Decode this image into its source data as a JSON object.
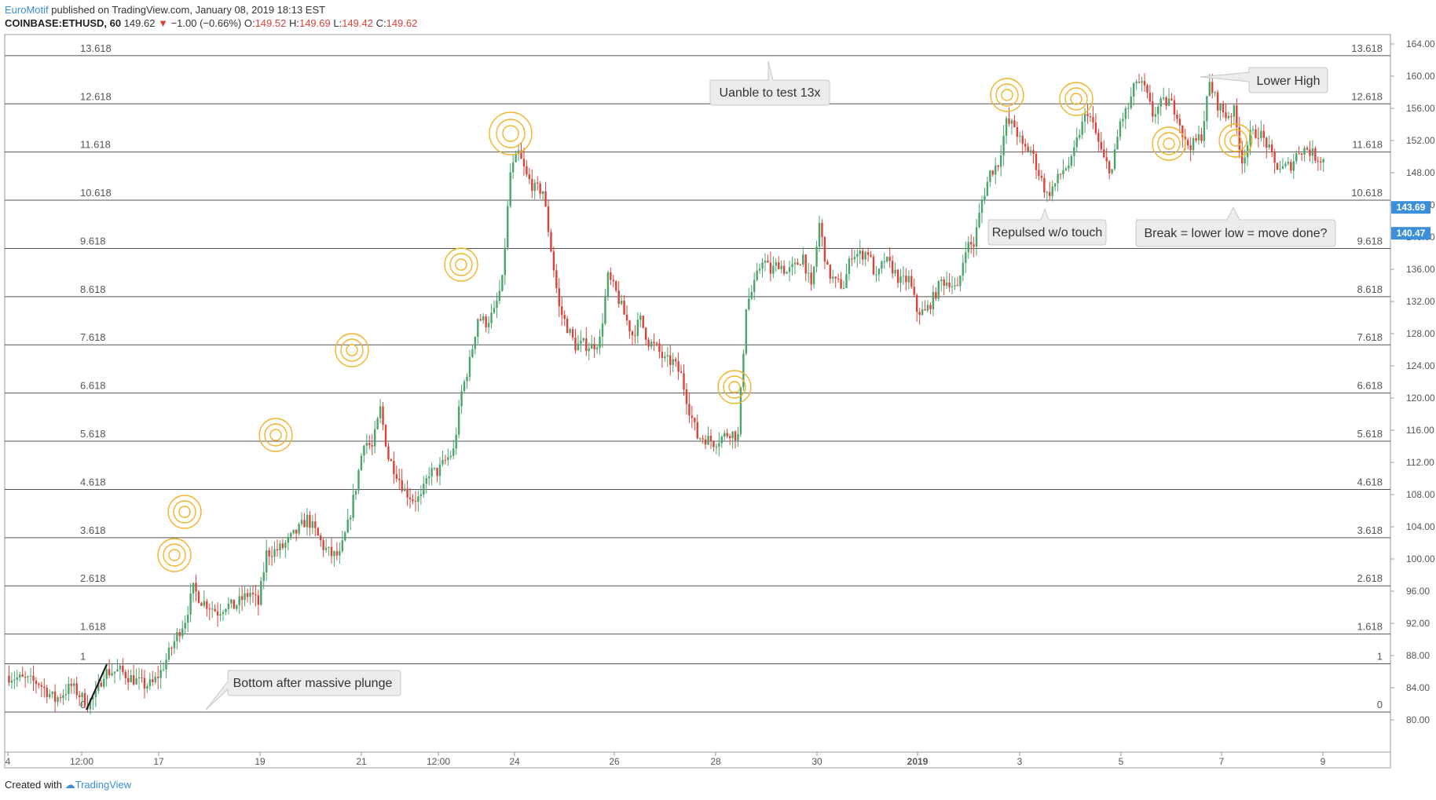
{
  "header": {
    "author": "EuroMotif",
    "published": "published on TradingView.com, January 08, 2019 18:13 EST",
    "symbol": "COINBASE:ETHUSD, 60",
    "last": "149.62",
    "change_arrow": "▼",
    "change": "−1.00 (−0.66%)",
    "o_label": "O:",
    "o": "149.52",
    "h_label": "H:",
    "h": "149.69",
    "l_label": "L:",
    "l": "149.42",
    "c_label": "C:",
    "c": "149.62"
  },
  "footer": {
    "created": "Created with",
    "brand": "TradingView"
  },
  "colors": {
    "up": "#4aa46b",
    "down": "#d9443a",
    "ring": "#f0b429",
    "badge": "#3a8fd8",
    "line": "#555555"
  },
  "chart_data": {
    "type": "candlestick",
    "ylim": [
      76,
      165
    ],
    "y_ticks": [
      "164.00",
      "160.00",
      "156.00",
      "152.00",
      "148.00",
      "144.00",
      "140.00",
      "136.00",
      "132.00",
      "128.00",
      "124.00",
      "120.00",
      "116.00",
      "112.00",
      "108.00",
      "104.00",
      "100.00",
      "96.00",
      "92.00",
      "88.00",
      "84.00",
      "80.00"
    ],
    "x_ticks": [
      "4",
      "12:00",
      "17",
      "19",
      "21",
      "12:00",
      "24",
      "26",
      "28",
      "30",
      "2019",
      "3",
      "5",
      "7",
      "9"
    ],
    "price_badges": [
      "143.69",
      "140.47"
    ],
    "fib_levels": [
      {
        "label": "0",
        "price": 80.98
      },
      {
        "label": "1",
        "price": 86.97
      },
      {
        "label": "1.618",
        "price": 90.67
      },
      {
        "label": "2.618",
        "price": 96.66
      },
      {
        "label": "3.618",
        "price": 102.65
      },
      {
        "label": "4.618",
        "price": 108.64
      },
      {
        "label": "5.618",
        "price": 114.63
      },
      {
        "label": "6.618",
        "price": 120.62
      },
      {
        "label": "7.618",
        "price": 126.61
      },
      {
        "label": "8.618",
        "price": 132.6
      },
      {
        "label": "9.618",
        "price": 138.59
      },
      {
        "label": "10.618",
        "price": 144.58
      },
      {
        "label": "11.618",
        "price": 150.57
      },
      {
        "label": "12.618",
        "price": 156.56
      },
      {
        "label": "13.618",
        "price": 162.55
      }
    ],
    "path": [
      [
        0,
        85.5
      ],
      [
        4,
        84.6
      ],
      [
        6,
        82.5
      ],
      [
        8,
        84.2
      ],
      [
        10,
        82.0
      ],
      [
        11,
        83.0
      ],
      [
        12,
        85.9
      ],
      [
        14,
        86.1
      ],
      [
        15,
        85.4
      ],
      [
        17,
        84.3
      ],
      [
        18,
        84.5
      ],
      [
        19,
        86.0
      ],
      [
        21,
        90.5
      ],
      [
        22,
        92.5
      ],
      [
        23,
        96.3
      ],
      [
        24,
        94.8
      ],
      [
        25,
        94.2
      ],
      [
        26,
        93.4
      ],
      [
        27,
        94.3
      ],
      [
        28,
        94.1
      ],
      [
        29,
        95.0
      ],
      [
        30,
        95.8
      ],
      [
        31,
        94.4
      ],
      [
        32,
        100.7
      ],
      [
        33,
        101.0
      ],
      [
        34,
        101.5
      ],
      [
        35,
        102.6
      ],
      [
        36,
        103.7
      ],
      [
        37,
        105.0
      ],
      [
        38,
        103.4
      ],
      [
        39,
        101.5
      ],
      [
        40,
        100.5
      ],
      [
        41,
        100.4
      ],
      [
        42,
        104.2
      ],
      [
        43,
        109.0
      ],
      [
        44,
        114.8
      ],
      [
        45,
        113.8
      ],
      [
        46,
        118.6
      ],
      [
        47,
        112.6
      ],
      [
        48,
        110.7
      ],
      [
        49,
        108.5
      ],
      [
        50,
        107.5
      ],
      [
        51,
        107.5
      ],
      [
        52,
        110.8
      ],
      [
        53,
        110.8
      ],
      [
        54,
        112.2
      ],
      [
        55,
        113.4
      ],
      [
        56,
        120.7
      ],
      [
        57,
        124.5
      ],
      [
        58,
        130.0
      ],
      [
        59,
        129.4
      ],
      [
        60,
        130.6
      ],
      [
        61,
        134.5
      ],
      [
        62,
        148.0
      ],
      [
        63,
        150.4
      ],
      [
        64,
        147.5
      ],
      [
        65,
        146.0
      ],
      [
        66,
        145.8
      ],
      [
        67,
        138.5
      ],
      [
        68,
        131.2
      ],
      [
        69,
        128.8
      ],
      [
        70,
        126.5
      ],
      [
        71,
        126.7
      ],
      [
        72,
        126.4
      ],
      [
        73,
        127.2
      ],
      [
        74,
        135.0
      ],
      [
        75,
        133.1
      ],
      [
        76,
        130.4
      ],
      [
        77,
        127.9
      ],
      [
        78,
        129.7
      ],
      [
        79,
        127.0
      ],
      [
        80,
        126.2
      ],
      [
        81,
        124.6
      ],
      [
        82,
        124.5
      ],
      [
        83,
        122.8
      ],
      [
        84,
        118.6
      ],
      [
        85,
        115.2
      ],
      [
        86,
        115.0
      ],
      [
        87,
        114.5
      ],
      [
        88,
        115.1
      ],
      [
        89,
        115.8
      ],
      [
        90,
        115.2
      ],
      [
        91,
        131.5
      ],
      [
        92,
        134.0
      ],
      [
        93,
        137.4
      ],
      [
        94,
        135.7
      ],
      [
        95,
        136.8
      ],
      [
        96,
        135.6
      ],
      [
        97,
        136.3
      ],
      [
        98,
        137.7
      ],
      [
        99,
        133.4
      ],
      [
        100,
        141.6
      ],
      [
        101,
        135.8
      ],
      [
        102,
        134.3
      ],
      [
        103,
        134.0
      ],
      [
        104,
        138.0
      ],
      [
        105,
        137.8
      ],
      [
        106,
        138.2
      ],
      [
        107,
        134.7
      ],
      [
        108,
        137.2
      ],
      [
        109,
        136.1
      ],
      [
        110,
        134.4
      ],
      [
        111,
        134.8
      ],
      [
        112,
        130.9
      ],
      [
        113,
        130.6
      ],
      [
        114,
        132.4
      ],
      [
        115,
        134.5
      ],
      [
        116,
        134.5
      ],
      [
        117,
        133.3
      ],
      [
        118,
        138.9
      ],
      [
        119,
        139.1
      ],
      [
        120,
        144.5
      ],
      [
        121,
        148.0
      ],
      [
        122,
        149.2
      ],
      [
        123,
        154.2
      ],
      [
        124,
        153.8
      ],
      [
        125,
        151.1
      ],
      [
        126,
        150.8
      ],
      [
        127,
        148.0
      ],
      [
        128,
        145.2
      ],
      [
        129,
        146.6
      ],
      [
        130,
        148.4
      ],
      [
        131,
        149.3
      ],
      [
        132,
        153.1
      ],
      [
        133,
        155.7
      ],
      [
        134,
        152.8
      ],
      [
        135,
        149.5
      ],
      [
        136,
        148.3
      ],
      [
        137,
        154.3
      ],
      [
        138,
        156.1
      ],
      [
        139,
        159.5
      ],
      [
        140,
        158.4
      ],
      [
        141,
        155.2
      ],
      [
        142,
        156.5
      ],
      [
        143,
        156.9
      ],
      [
        144,
        155.5
      ],
      [
        145,
        151.6
      ],
      [
        146,
        151.5
      ],
      [
        147,
        152.7
      ],
      [
        148,
        159.0
      ],
      [
        149,
        156.5
      ],
      [
        150,
        155.1
      ],
      [
        151,
        155.6
      ],
      [
        152,
        149.5
      ],
      [
        153,
        152.6
      ],
      [
        154,
        153.1
      ],
      [
        155,
        151.6
      ],
      [
        156,
        149.0
      ],
      [
        157,
        148.5
      ],
      [
        158,
        149.0
      ],
      [
        159,
        150.8
      ],
      [
        160,
        151.0
      ],
      [
        161,
        150.0
      ],
      [
        162,
        149.6
      ]
    ]
  },
  "annotations": {
    "c1": "Uanble to test 13x",
    "c2": "Lower High",
    "c3": "Repulsed w/o touch",
    "c4": "Break = lower low = move done?",
    "c5": "Bottom after massive plunge"
  }
}
